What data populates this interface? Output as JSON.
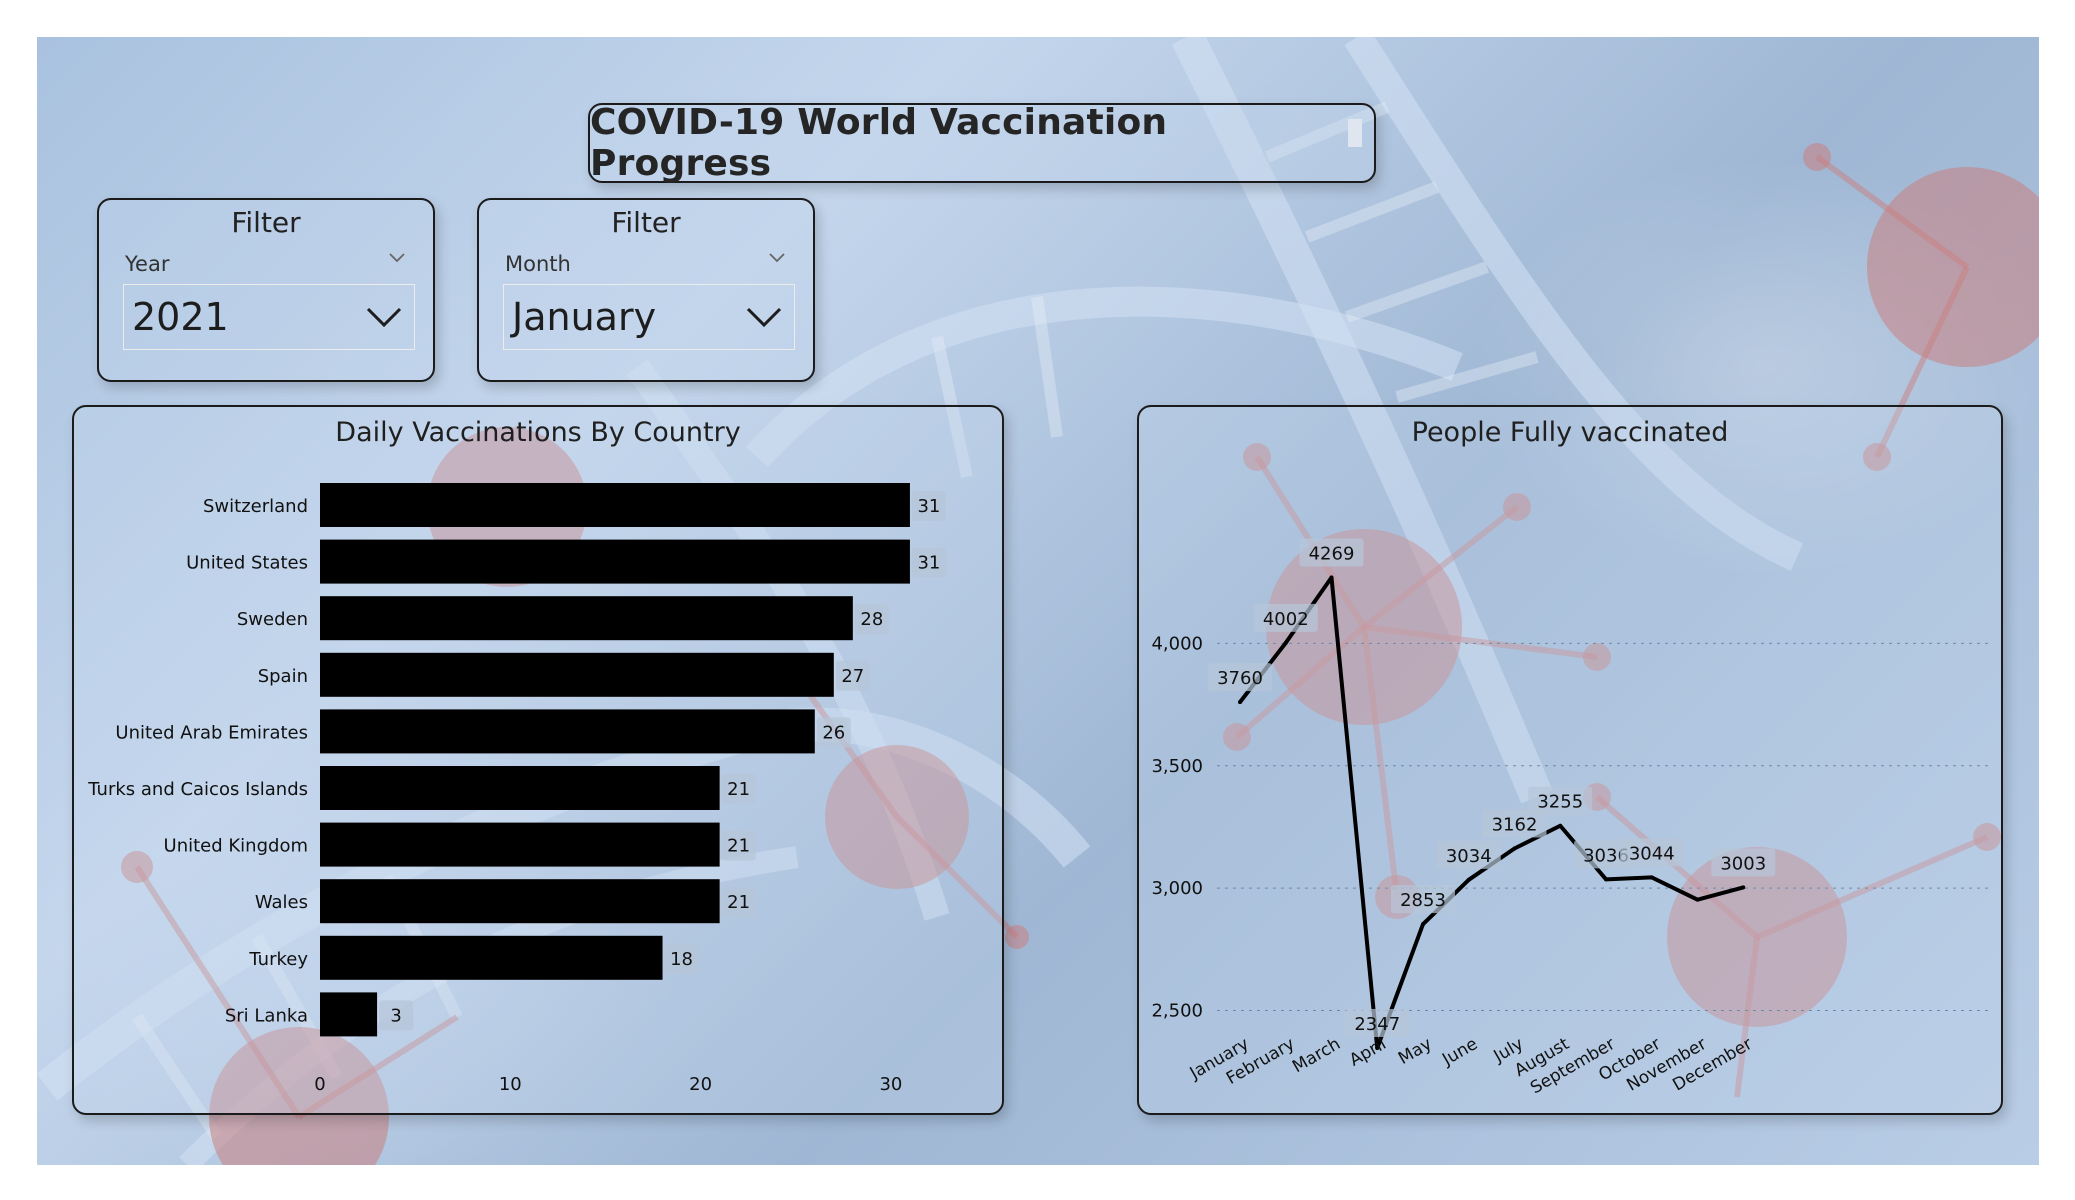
{
  "header": {
    "title": "COVID-19 World Vaccination Progress"
  },
  "filters": [
    {
      "heading": "Filter",
      "label": "Year",
      "value": "2021"
    },
    {
      "heading": "Filter",
      "label": "Month",
      "value": "January"
    }
  ],
  "charts": {
    "bar_title": "Daily Vaccinations By Country",
    "line_title": "People Fully vaccinated"
  },
  "colors": {
    "marks": "#000000",
    "panel_border": "#1b1b1b",
    "label_bg": "#b7c6d8"
  },
  "chart_data": [
    {
      "type": "bar",
      "orientation": "horizontal",
      "title": "Daily Vaccinations By Country",
      "categories": [
        "Switzerland",
        "United States",
        "Sweden",
        "Spain",
        "United Arab Emirates",
        "Turks and Caicos Islands",
        "United Kingdom",
        "Wales",
        "Turkey",
        "Sri Lanka"
      ],
      "values": [
        31,
        31,
        28,
        27,
        26,
        21,
        21,
        21,
        18,
        3
      ],
      "xlim": [
        0,
        31
      ],
      "xticks": [
        0,
        10,
        20,
        30
      ],
      "grid": false,
      "data_labels": true
    },
    {
      "type": "line",
      "title": "People Fully vaccinated",
      "categories": [
        "January",
        "February",
        "March",
        "April",
        "May",
        "June",
        "July",
        "August",
        "September",
        "October",
        "November",
        "December"
      ],
      "values": [
        3760,
        4002,
        4269,
        2347,
        2853,
        3034,
        3162,
        3255,
        3036,
        3044,
        2953,
        3003
      ],
      "shown_labels": [
        "3760",
        "4002",
        "4269",
        "2347",
        "2853",
        "3034",
        "3162",
        "3255",
        "3036",
        "3044",
        "",
        "3003"
      ],
      "ylim": [
        2200,
        4320
      ],
      "yticks": [
        2500,
        3000,
        3500,
        4000
      ],
      "ytick_labels": [
        "2,500",
        "3,000",
        "3,500",
        "4,000"
      ],
      "grid": true
    }
  ]
}
